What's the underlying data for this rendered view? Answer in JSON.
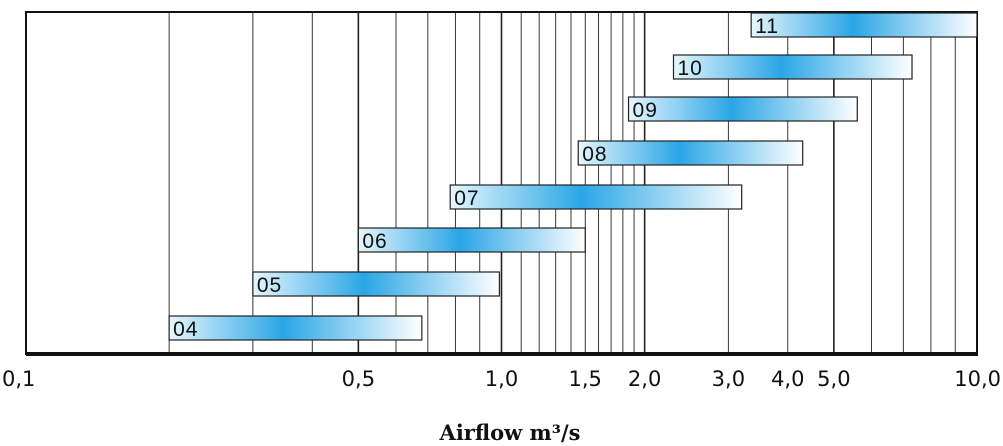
{
  "chart_data": {
    "type": "bar",
    "orientation": "horizontal-range",
    "xscale": "log",
    "xlim": [
      0.1,
      10.0
    ],
    "xlabel": "Airflow m³/s",
    "ylabel": "",
    "title": "",
    "grid": true,
    "xticks": [
      {
        "value": 0.1,
        "label": "0,1"
      },
      {
        "value": 0.5,
        "label": "0,5"
      },
      {
        "value": 1.0,
        "label": "1,0"
      },
      {
        "value": 1.5,
        "label": "1,5"
      },
      {
        "value": 2.0,
        "label": "2,0"
      },
      {
        "value": 3.0,
        "label": "3,0"
      },
      {
        "value": 4.0,
        "label": "4,0"
      },
      {
        "value": 5.0,
        "label": "5,0"
      },
      {
        "value": 10.0,
        "label": "10,0"
      }
    ],
    "gridlines": [
      0.2,
      0.3,
      0.4,
      0.5,
      0.6,
      0.7,
      0.8,
      0.9,
      1.0,
      1.1,
      1.2,
      1.3,
      1.4,
      1.5,
      1.6,
      1.7,
      1.8,
      1.9,
      2.0,
      3.0,
      4.0,
      5.0,
      6.0,
      7.0,
      8.0,
      9.0
    ],
    "categories": [
      "04",
      "05",
      "06",
      "07",
      "08",
      "09",
      "10",
      "11"
    ],
    "ranges": [
      {
        "label": "04",
        "start": 0.2,
        "end": 0.68
      },
      {
        "label": "05",
        "start": 0.3,
        "end": 0.99
      },
      {
        "label": "06",
        "start": 0.5,
        "end": 1.5
      },
      {
        "label": "07",
        "start": 0.78,
        "end": 3.2
      },
      {
        "label": "08",
        "start": 1.45,
        "end": 4.3
      },
      {
        "label": "09",
        "start": 1.85,
        "end": 5.6
      },
      {
        "label": "10",
        "start": 2.3,
        "end": 7.3
      },
      {
        "label": "11",
        "start": 3.35,
        "end": 10.0
      }
    ],
    "colors": {
      "bar_edge": "#2aa6e6",
      "bar_light": "#e6f6fd",
      "bar_stroke": "#222222",
      "grid": "#222222",
      "axis": "#111111"
    }
  }
}
